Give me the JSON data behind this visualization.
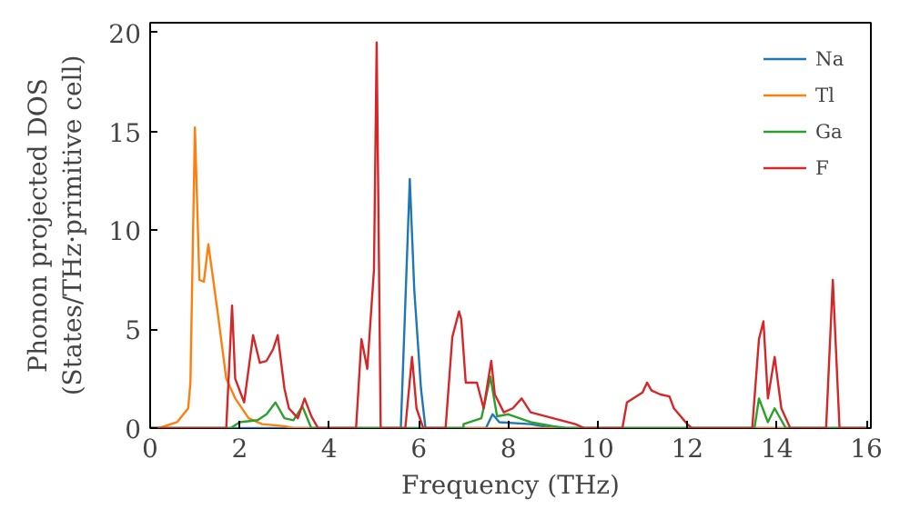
{
  "chart_data": {
    "type": "line",
    "xlabel": "Frequency (THz)",
    "ylabel": "Phonon projected DOS\n(States/THz·primitive cell)",
    "xlim": [
      0,
      16.1
    ],
    "ylim": [
      0,
      20.5
    ],
    "xticks": [
      0,
      2,
      4,
      6,
      8,
      10,
      12,
      14,
      16
    ],
    "yticks": [
      0,
      5,
      10,
      15,
      20
    ],
    "grid": false,
    "legend": "top right",
    "series": [
      {
        "name": "Na",
        "color": "#1f77b4",
        "x": [
          0,
          5.6,
          5.8,
          5.9,
          6.05,
          6.15,
          7.5,
          7.65,
          7.8,
          8.5,
          9.0,
          16
        ],
        "values": [
          0,
          0,
          12.6,
          7,
          2,
          0,
          0,
          0.7,
          0.3,
          0.2,
          0,
          0
        ]
      },
      {
        "name": "Tl",
        "color": "#ff7f0e",
        "x": [
          0,
          0.2,
          0.6,
          0.85,
          0.9,
          1.0,
          1.1,
          1.2,
          1.3,
          1.5,
          1.7,
          1.9,
          2.2,
          2.5,
          3.0,
          3.2,
          16
        ],
        "values": [
          0,
          0,
          0.3,
          1,
          2.3,
          15.2,
          7.5,
          7.4,
          9.3,
          6,
          2.5,
          1.5,
          0.5,
          0.2,
          0.1,
          0,
          0
        ]
      },
      {
        "name": "Ga",
        "color": "#2ca02c",
        "x": [
          0,
          1.8,
          2.0,
          2.4,
          2.6,
          2.8,
          3.0,
          3.2,
          3.4,
          3.6,
          7.0,
          7.0,
          7.4,
          7.6,
          7.75,
          8.0,
          8.5,
          9.0,
          9.3,
          13.5,
          13.6,
          13.8,
          13.95,
          14.2,
          16
        ],
        "values": [
          0,
          0,
          0.3,
          0.4,
          0.7,
          1.3,
          0.5,
          0.4,
          1.1,
          0,
          0,
          0.2,
          0.5,
          2.6,
          0.6,
          0.7,
          0.3,
          0.1,
          0,
          0,
          1.5,
          0.3,
          1.0,
          0,
          0
        ]
      },
      {
        "name": "F",
        "color": "#d62728",
        "x": [
          0,
          1.7,
          1.83,
          1.9,
          2.1,
          2.3,
          2.45,
          2.6,
          2.75,
          2.85,
          3.0,
          3.1,
          3.3,
          3.45,
          3.6,
          3.75,
          4.6,
          4.72,
          4.85,
          5.0,
          5.06,
          5.15,
          5.7,
          5.85,
          5.95,
          6.1,
          6.6,
          6.75,
          6.9,
          6.95,
          7.05,
          7.3,
          7.45,
          7.62,
          7.7,
          7.9,
          8.1,
          8.3,
          8.5,
          9.0,
          9.5,
          9.7,
          10.55,
          10.65,
          11.0,
          11.1,
          11.2,
          11.4,
          11.6,
          11.7,
          12.0,
          12.1,
          13.45,
          13.6,
          13.7,
          13.8,
          13.95,
          14.1,
          14.3,
          15.1,
          15.25,
          15.4,
          16
        ],
        "values": [
          0,
          0,
          6.2,
          2.5,
          1.3,
          4.7,
          3.3,
          3.4,
          4.0,
          4.7,
          2.0,
          1.0,
          0.5,
          1.5,
          0.6,
          0,
          0,
          4.5,
          3.0,
          8,
          19.5,
          0,
          0,
          3.6,
          1,
          0,
          0,
          4.6,
          5.9,
          5.5,
          2.3,
          2.3,
          1.0,
          3.4,
          1.7,
          0.8,
          1.0,
          1.5,
          0.8,
          0.5,
          0.2,
          0,
          0,
          1.3,
          1.8,
          2.3,
          1.9,
          1.7,
          1.6,
          1.0,
          0.2,
          0,
          0,
          4.5,
          5.4,
          1.5,
          3.6,
          1.0,
          0,
          0,
          7.5,
          0,
          0
        ]
      }
    ]
  }
}
